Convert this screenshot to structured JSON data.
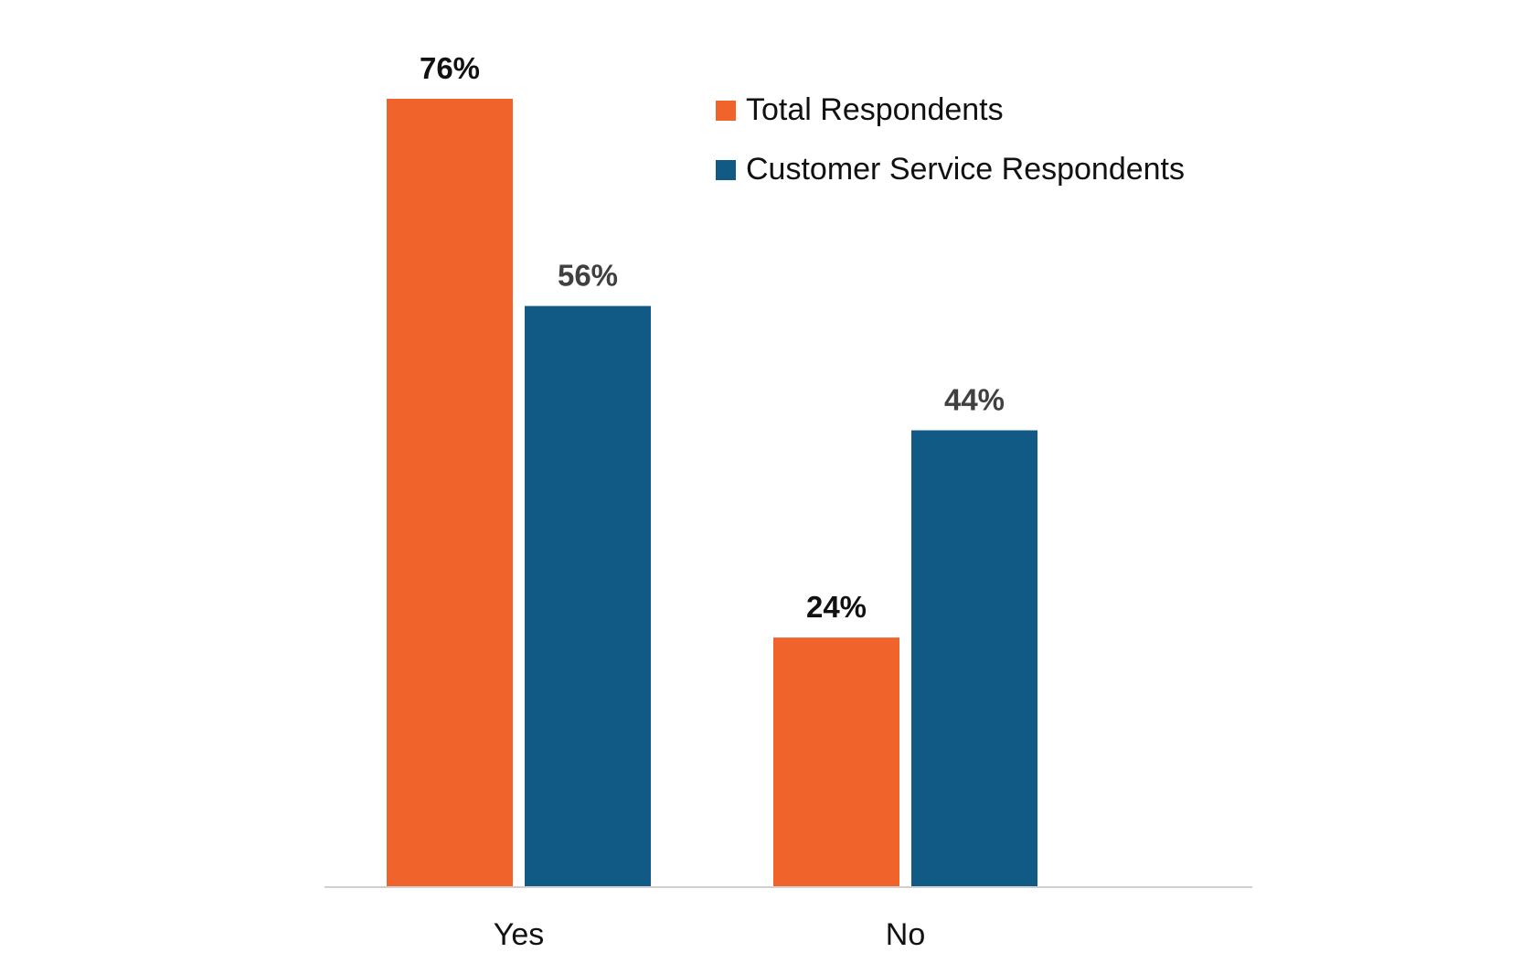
{
  "chart_data": {
    "type": "bar",
    "title": "",
    "xlabel": "",
    "ylabel": "",
    "categories": [
      "Yes",
      "No"
    ],
    "series": [
      {
        "name": "Total Respondents",
        "values": [
          76,
          24
        ],
        "color": "#F0642C",
        "label_color": "#111111"
      },
      {
        "name": "Customer Service Respondents",
        "values": [
          56,
          44
        ],
        "color": "#115A85",
        "label_color": "#404040"
      }
    ],
    "value_suffix": "%",
    "ylim": [
      0,
      76
    ],
    "grid": false,
    "legend_position": "top-right"
  }
}
